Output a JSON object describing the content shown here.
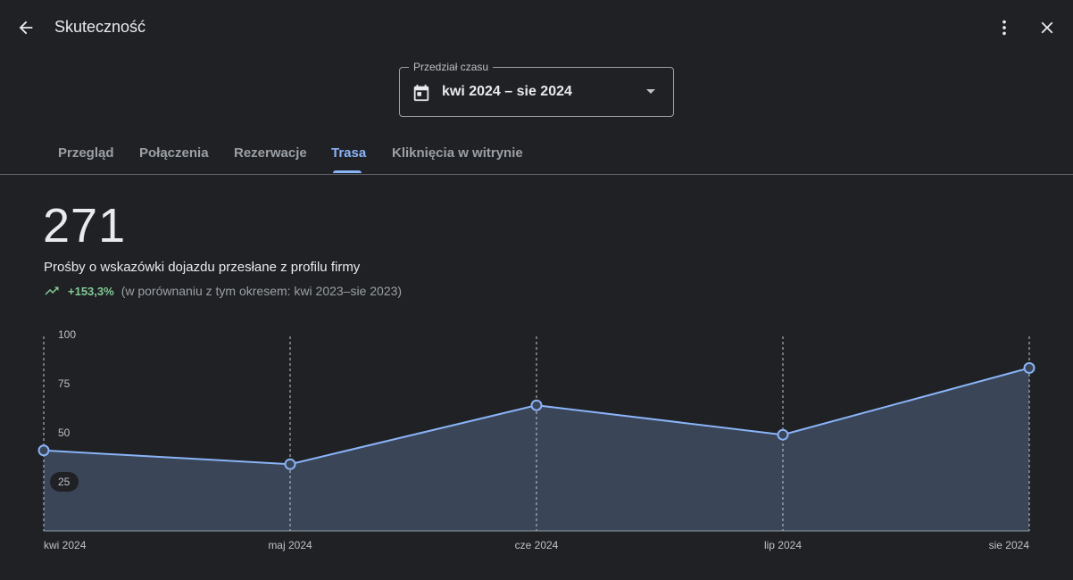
{
  "header": {
    "title": "Skuteczność",
    "icons": [
      "arrow-back-icon",
      "more-vert-icon",
      "close-icon"
    ]
  },
  "date_range": {
    "label": "Przedział czasu",
    "value": "kwi 2024 – sie 2024",
    "icon": "calendar-icon"
  },
  "tabs": [
    {
      "label": "Przegląd",
      "active": false
    },
    {
      "label": "Połączenia",
      "active": false
    },
    {
      "label": "Rezerwacje",
      "active": false
    },
    {
      "label": "Trasa",
      "active": true
    },
    {
      "label": "Kliknięcia w witrynie",
      "active": false
    }
  ],
  "metric": {
    "value": "271",
    "label": "Prośby o wskazówki dojazdu przesłane z profilu firmy",
    "change": "+153,3%",
    "comparison": "(w porównaniu z tym okresem: kwi 2023–sie 2023)"
  },
  "colors": {
    "background": "#202124",
    "accent": "#8ab4f8",
    "positive": "#81c995",
    "area_fill": "#3a4558"
  },
  "chart_data": {
    "type": "area",
    "x": [
      "kwi 2024",
      "maj 2024",
      "cze 2024",
      "lip 2024",
      "sie 2024"
    ],
    "values": [
      41,
      34,
      64,
      49,
      83
    ],
    "ylim": [
      0,
      100
    ],
    "yticks": [
      "100",
      "75",
      "50",
      "25"
    ],
    "grid": "vertical-dashed",
    "title": "",
    "xlabel": "",
    "ylabel": ""
  }
}
